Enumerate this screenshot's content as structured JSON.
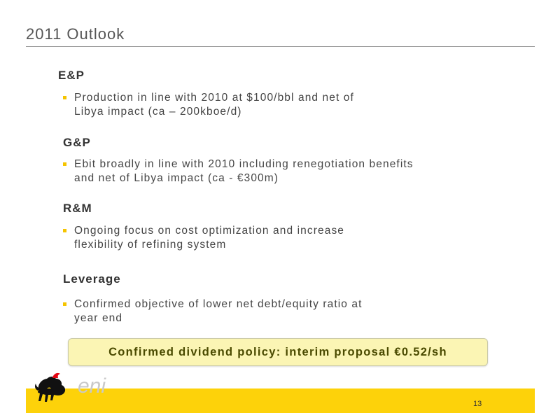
{
  "slide": {
    "title": "2011 Outlook",
    "page_number": "13"
  },
  "sections": [
    {
      "heading": "E&P",
      "bullet_lines": [
        "Production in line with 2010 at $100/bbl and net of",
        "Libya impact (ca – 200kboe/d)"
      ]
    },
    {
      "heading": "G&P",
      "bullet_lines": [
        "Ebit broadly in line with 2010 including renegotiation benefits",
        "and net of Libya impact (ca - €300m)"
      ]
    },
    {
      "heading": "R&M",
      "bullet_lines": [
        "Ongoing focus on cost optimization and increase",
        "flexibility of refining system"
      ]
    },
    {
      "heading": "Leverage",
      "bullet_lines": [
        "Confirmed objective of lower net debt/equity ratio at",
        "year end"
      ]
    }
  ],
  "callout": {
    "text": "Confirmed dividend policy: interim proposal €0.52/sh"
  },
  "logo": {
    "wordmark": "eni",
    "icon": "six-legged-dog-icon"
  },
  "colors": {
    "accent": "#fdd20a",
    "bullet": "#f5c400",
    "callout_bg": "#fbf5b4"
  }
}
